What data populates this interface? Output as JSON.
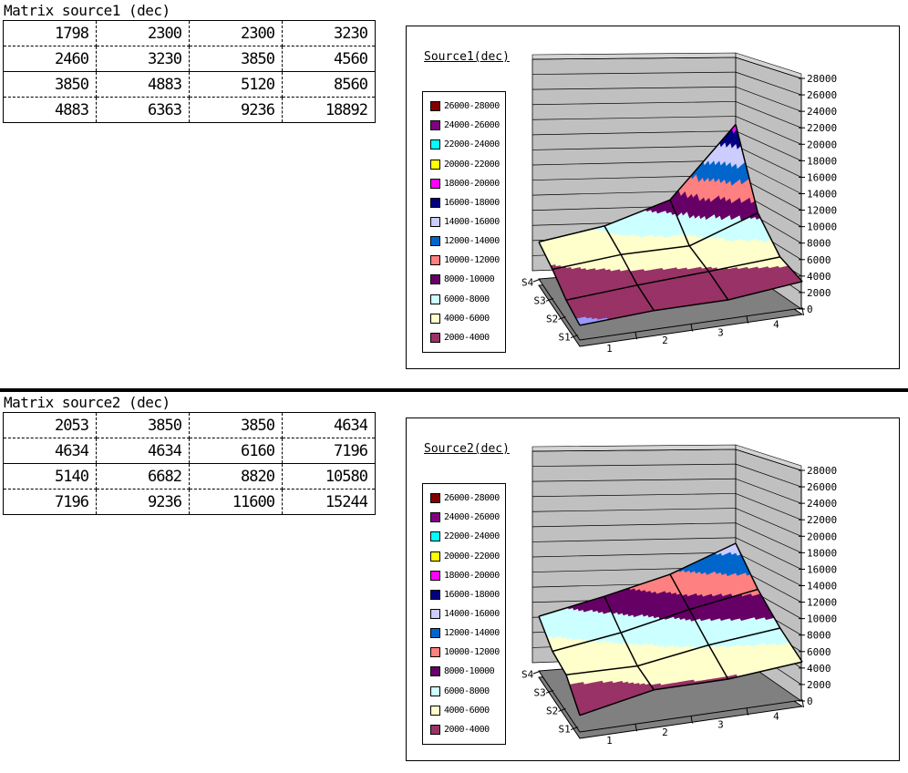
{
  "tables": [
    {
      "title": "Matrix source1 (dec)",
      "rows": [
        [
          1798,
          2300,
          2300,
          3230
        ],
        [
          2460,
          3230,
          3850,
          4560
        ],
        [
          3850,
          4883,
          5120,
          8560
        ],
        [
          4883,
          6363,
          9236,
          18892
        ]
      ]
    },
    {
      "title": "Matrix source2 (dec)",
      "rows": [
        [
          2053,
          3850,
          3850,
          4634
        ],
        [
          4634,
          4634,
          6160,
          7196
        ],
        [
          5140,
          6682,
          8820,
          10580
        ],
        [
          7196,
          9236,
          11600,
          15244
        ]
      ]
    }
  ],
  "chart_data": [
    {
      "type": "surface3d",
      "title": "Source1(dec)",
      "categories": [
        "1",
        "2",
        "3",
        "4"
      ],
      "series_labels": [
        "S1",
        "S2",
        "S3",
        "S4"
      ],
      "values": [
        [
          1798,
          2300,
          2300,
          3230
        ],
        [
          2460,
          3230,
          3850,
          4560
        ],
        [
          3850,
          4883,
          5120,
          8560
        ],
        [
          4883,
          6363,
          9236,
          18892
        ]
      ],
      "zlim": [
        0,
        28000
      ],
      "ztick_interval": 2000,
      "legend_position": "left",
      "legend_labels": [
        "26000-28000",
        "24000-26000",
        "22000-24000",
        "20000-22000",
        "18000-20000",
        "16000-18000",
        "14000-16000",
        "12000-14000",
        "10000-12000",
        "8000-10000",
        "6000-8000",
        "4000-6000",
        "2000-4000"
      ],
      "band_colors": {
        "0-2000": "#9999FF",
        "2000-4000": "#993366",
        "4000-6000": "#FFFFCC",
        "6000-8000": "#CCFFFF",
        "8000-10000": "#660066",
        "10000-12000": "#FF8080",
        "12000-14000": "#0066CC",
        "14000-16000": "#CCCCFF",
        "16000-18000": "#000080",
        "18000-20000": "#FF00FF",
        "20000-22000": "#FFFF00",
        "22000-24000": "#00FFFF",
        "24000-26000": "#800080",
        "26000-28000": "#800000"
      },
      "wall_color": "#C0C0C0",
      "floor_color": "#808080",
      "grid": true
    },
    {
      "type": "surface3d",
      "title": "Source2(dec)",
      "categories": [
        "1",
        "2",
        "3",
        "4"
      ],
      "series_labels": [
        "S1",
        "S2",
        "S3",
        "S4"
      ],
      "values": [
        [
          2053,
          3850,
          3850,
          4634
        ],
        [
          4634,
          4634,
          6160,
          7196
        ],
        [
          5140,
          6682,
          8820,
          10580
        ],
        [
          7196,
          9236,
          11600,
          15244
        ]
      ],
      "zlim": [
        0,
        28000
      ],
      "ztick_interval": 2000,
      "legend_position": "left",
      "legend_labels": [
        "26000-28000",
        "24000-26000",
        "22000-24000",
        "20000-22000",
        "18000-20000",
        "16000-18000",
        "14000-16000",
        "12000-14000",
        "10000-12000",
        "8000-10000",
        "6000-8000",
        "4000-6000",
        "2000-4000"
      ],
      "band_colors": {
        "0-2000": "#9999FF",
        "2000-4000": "#993366",
        "4000-6000": "#FFFFCC",
        "6000-8000": "#CCFFFF",
        "8000-10000": "#660066",
        "10000-12000": "#FF8080",
        "12000-14000": "#0066CC",
        "14000-16000": "#CCCCFF",
        "16000-18000": "#000080",
        "18000-20000": "#FF00FF",
        "20000-22000": "#FFFF00",
        "22000-24000": "#00FFFF",
        "24000-26000": "#800080",
        "26000-28000": "#800000"
      },
      "wall_color": "#C0C0C0",
      "floor_color": "#808080",
      "grid": true
    }
  ]
}
